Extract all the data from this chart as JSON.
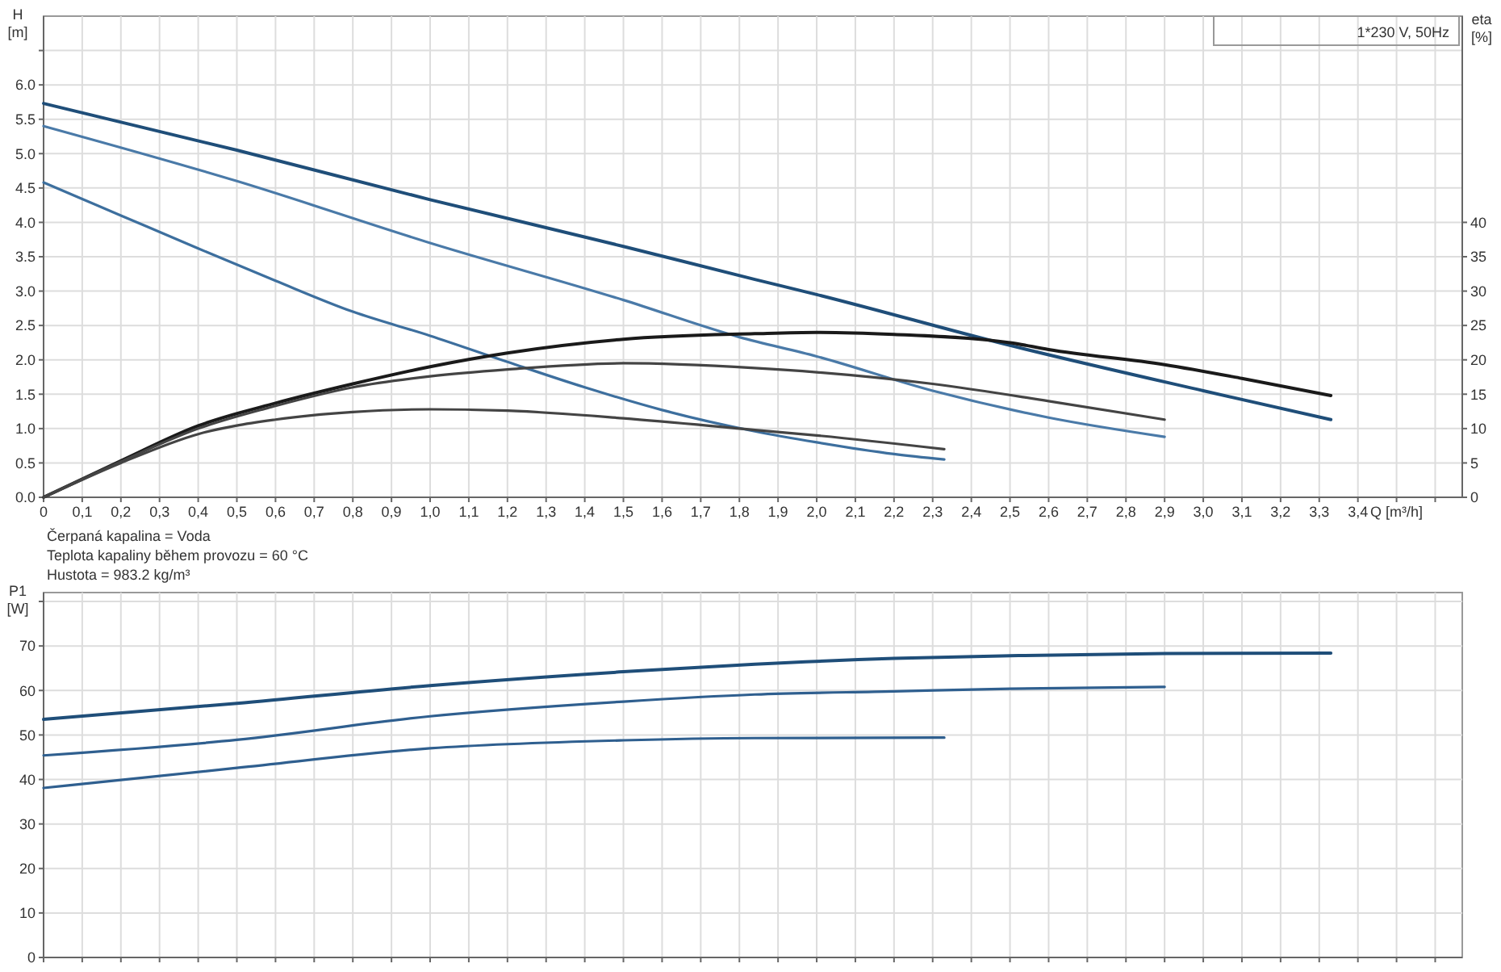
{
  "chart_data": [
    {
      "type": "line",
      "xlabel": "Q [m³/h]",
      "ylabel": "H [m]",
      "y2label": "eta [%]",
      "grid": true,
      "annotations": [
        "1*230 V, 50Hz",
        "Čerpaná kapalina = Voda",
        "Teplota kapaliny během provozu = 60 °C",
        "Hustota = 983.2 kg/m³"
      ],
      "xlim": [
        0,
        3.67
      ],
      "xticks": [
        0,
        {
          "value": 0.1,
          "label": "0,1"
        },
        {
          "value": 0.2,
          "label": "0,2"
        },
        {
          "value": 0.3,
          "label": "0,3"
        },
        {
          "value": 0.4,
          "label": "0,4"
        },
        {
          "value": 0.5,
          "label": "0,5"
        },
        {
          "value": 0.6,
          "label": "0,6"
        },
        {
          "value": 0.7,
          "label": "0,7"
        },
        {
          "value": 0.8,
          "label": "0,8"
        },
        {
          "value": 0.9,
          "label": "0,9"
        },
        {
          "value": 1,
          "label": "1,0"
        },
        {
          "value": 1.1,
          "label": "1,1"
        },
        {
          "value": 1.2,
          "label": "1,2"
        },
        {
          "value": 1.3,
          "label": "1,3"
        },
        {
          "value": 1.4,
          "label": "1,4"
        },
        {
          "value": 1.5,
          "label": "1,5"
        },
        {
          "value": 1.6,
          "label": "1,6"
        },
        {
          "value": 1.7,
          "label": "1,7"
        },
        {
          "value": 1.8,
          "label": "1,8"
        },
        {
          "value": 1.9,
          "label": "1,9"
        },
        {
          "value": 2,
          "label": "2,0"
        },
        {
          "value": 2.1,
          "label": "2,1"
        },
        {
          "value": 2.2,
          "label": "2,2"
        },
        {
          "value": 2.3,
          "label": "2,3"
        },
        {
          "value": 2.4,
          "label": "2,4"
        },
        {
          "value": 2.5,
          "label": "2,5"
        },
        {
          "value": 2.6,
          "label": "2,6"
        },
        {
          "value": 2.7,
          "label": "2,7"
        },
        {
          "value": 2.8,
          "label": "2,8"
        },
        {
          "value": 2.9,
          "label": "2,9"
        },
        {
          "value": 3,
          "label": "3,0"
        },
        {
          "value": 3.1,
          "label": "3,1"
        },
        {
          "value": 3.2,
          "label": "3,2"
        },
        {
          "value": 3.3,
          "label": "3,3"
        },
        {
          "value": 3.4,
          "label": "3,4"
        },
        {
          "value": 3.5,
          "label": null
        },
        {
          "value": 3.6,
          "label": null
        }
      ],
      "ylim": [
        0,
        7
      ],
      "yticks": [
        {
          "value": 0,
          "label": "0.0"
        },
        {
          "value": 0.5,
          "label": "0.5"
        },
        {
          "value": 1,
          "label": "1.0"
        },
        {
          "value": 1.5,
          "label": "1.5"
        },
        {
          "value": 2,
          "label": "2.0"
        },
        {
          "value": 2.5,
          "label": "2.5"
        },
        {
          "value": 3,
          "label": "3.0"
        },
        {
          "value": 3.5,
          "label": "3.5"
        },
        {
          "value": 4,
          "label": "4.0"
        },
        {
          "value": 4.5,
          "label": "4.5"
        },
        {
          "value": 5,
          "label": "5.0"
        },
        {
          "value": 5.5,
          "label": "5.5"
        },
        {
          "value": 6,
          "label": "6.0"
        },
        {
          "value": 6.5,
          "label": null
        }
      ],
      "y2lim": [
        0,
        70
      ],
      "y2ticks": [
        0,
        5,
        10,
        15,
        20,
        25,
        30,
        35,
        40
      ],
      "series": [
        {
          "color": "#1f4e79",
          "x": [
            0,
            0.5,
            1,
            1.5,
            1.84,
            2,
            2.5,
            3,
            3.33
          ],
          "values": [
            5.73,
            5.05,
            4.33,
            3.65,
            3.17,
            2.95,
            2.21,
            1.55,
            1.13
          ]
        },
        {
          "color": "#4a7aa8",
          "x": [
            0,
            0.5,
            1,
            1.5,
            1.8,
            2,
            2.3,
            2.6,
            2.9
          ],
          "values": [
            5.4,
            4.6,
            3.7,
            2.87,
            2.33,
            2.05,
            1.55,
            1.16,
            0.88
          ]
        },
        {
          "color": "#3d6f9e",
          "x": [
            0,
            0.2,
            0.4,
            0.6,
            0.8,
            1,
            1.2,
            1.4,
            1.6,
            1.84,
            2,
            2.2,
            2.33
          ],
          "values": [
            4.58,
            4.1,
            3.62,
            3.15,
            2.7,
            2.35,
            1.97,
            1.6,
            1.27,
            0.96,
            0.8,
            0.63,
            0.55
          ]
        },
        {
          "axis": "y2",
          "color": "#1a1a1a",
          "x": [
            0,
            0.2,
            0.4,
            0.6,
            0.8,
            1,
            1.2,
            1.5,
            1.84,
            2,
            2.2,
            2.5,
            2.6,
            2.9,
            3.1,
            3.33
          ],
          "values": [
            0,
            5.3,
            10.4,
            13.7,
            16.5,
            19,
            21,
            23,
            23.8,
            24,
            23.7,
            22.5,
            21.5,
            19.3,
            17.3,
            14.8
          ]
        },
        {
          "axis": "y2",
          "color": "#444444",
          "x": [
            0,
            0.2,
            0.4,
            0.6,
            0.8,
            1,
            1.2,
            1.5,
            1.84,
            2,
            2.3,
            2.6,
            2.9
          ],
          "values": [
            0,
            5.2,
            10,
            13.3,
            16,
            17.6,
            18.6,
            19.5,
            18.8,
            18.2,
            16.5,
            14,
            11.3
          ]
        },
        {
          "axis": "y2",
          "color": "#444444",
          "x": [
            0,
            0.2,
            0.4,
            0.6,
            0.8,
            1,
            1.2,
            1.5,
            1.84,
            2,
            2.33
          ],
          "values": [
            0,
            5,
            9.2,
            11.3,
            12.4,
            12.8,
            12.6,
            11.5,
            9.8,
            9,
            7
          ]
        }
      ]
    },
    {
      "type": "line",
      "ylabel": "P1 [W]",
      "grid": true,
      "tick_labels": "y",
      "xlim": [
        0,
        3.67
      ],
      "xticks": [
        0,
        0.1,
        0.2,
        0.3,
        0.4,
        0.5,
        0.6,
        0.7,
        0.8,
        0.9,
        1,
        1.1,
        1.2,
        1.3,
        1.4,
        1.5,
        1.6,
        1.7,
        1.8,
        1.9,
        2,
        2.1,
        2.2,
        2.3,
        2.4,
        2.5,
        2.6,
        2.7,
        2.8,
        2.9,
        3,
        3.1,
        3.2,
        3.3,
        3.4,
        3.5,
        3.6
      ],
      "ylim": [
        0,
        82
      ],
      "yticks": [
        0,
        10,
        20,
        30,
        40,
        50,
        60,
        70,
        {
          "value": 80,
          "label": null
        }
      ],
      "series": [
        {
          "color": "#1f4e79",
          "x": [
            0,
            0.5,
            1,
            1.5,
            1.84,
            2.2,
            2.5,
            2.9,
            3.33
          ],
          "values": [
            53.5,
            57.1,
            61.1,
            64.2,
            65.9,
            67.2,
            67.8,
            68.3,
            68.4
          ]
        },
        {
          "color": "#2f5f8f",
          "x": [
            0,
            0.5,
            1,
            1.5,
            1.84,
            2.2,
            2.5,
            2.9
          ],
          "values": [
            45.4,
            48.9,
            54.2,
            57.5,
            59.1,
            59.8,
            60.4,
            60.8
          ]
        },
        {
          "color": "#2f5f8f",
          "x": [
            0,
            0.5,
            1,
            1.5,
            1.84,
            2.33
          ],
          "values": [
            38.1,
            42.6,
            47,
            48.8,
            49.3,
            49.4
          ]
        }
      ]
    }
  ]
}
